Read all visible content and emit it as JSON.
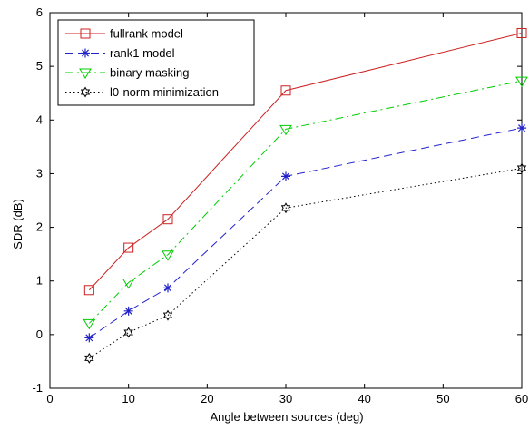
{
  "chart_data": {
    "type": "line",
    "title": "",
    "xlabel": "Angle between sources (deg)",
    "ylabel": "SDR (dB)",
    "xlim": [
      0,
      60
    ],
    "ylim": [
      -1,
      6
    ],
    "xticks": [
      0,
      10,
      20,
      30,
      40,
      50,
      60
    ],
    "yticks": [
      -1,
      0,
      1,
      2,
      3,
      4,
      5,
      6
    ],
    "grid": false,
    "legend_position": "top-left",
    "x": [
      5,
      10,
      15,
      30,
      60
    ],
    "series": [
      {
        "name": "fullrank model",
        "values": [
          0.83,
          1.62,
          2.15,
          4.55,
          5.62
        ],
        "color": "#cc2222",
        "line_style": "solid",
        "marker": "square"
      },
      {
        "name": "rank1 model",
        "values": [
          -0.06,
          0.44,
          0.87,
          2.95,
          3.85
        ],
        "color": "#2222cc",
        "line_style": "dashed",
        "marker": "asterisk"
      },
      {
        "name": "binary masking",
        "values": [
          0.21,
          0.97,
          1.49,
          3.83,
          4.73
        ],
        "color": "#00cc00",
        "line_style": "dash-dot",
        "marker": "triangle-down"
      },
      {
        "name": "l0-norm minimization",
        "values": [
          -0.44,
          0.04,
          0.36,
          2.36,
          3.1
        ],
        "color": "#000000",
        "line_style": "dotted",
        "marker": "hexagram"
      }
    ]
  }
}
